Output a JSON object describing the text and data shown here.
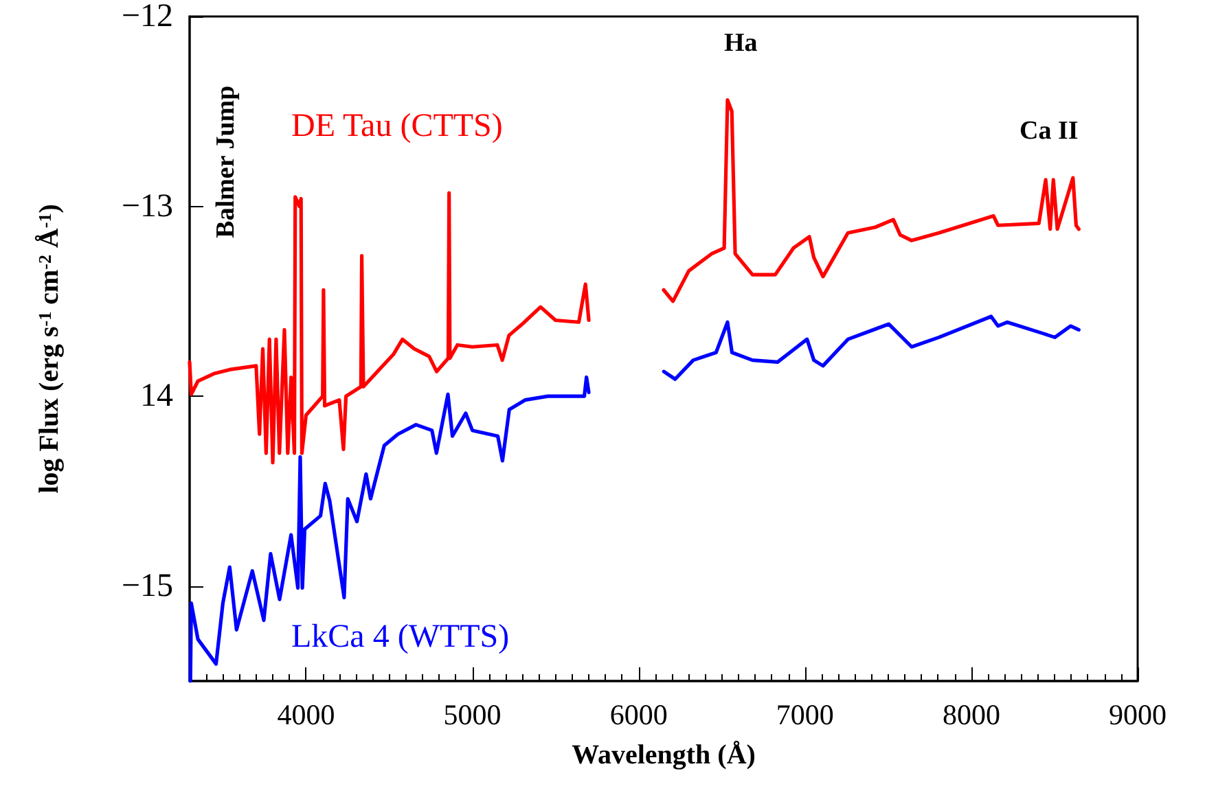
{
  "chart_data": {
    "type": "line",
    "xlabel": "Wavelength (Å)",
    "ylabel": "log Flux (erg s$^{-1}$ cm$^{-2}$ Å$^{-1}$)",
    "xlim": [
      3300,
      9000
    ],
    "xticks": [
      4000,
      5000,
      6000,
      7000,
      8000,
      9000
    ],
    "ylim": [
      -15.5,
      -12
    ],
    "yticks": [
      -12,
      -13,
      {
        "value": -14,
        "label": "14"
      },
      -15
    ],
    "grid": false,
    "legend": false,
    "marker": "none",
    "line_style": "solid",
    "annotations": [
      "Balmer Jump",
      "Ha",
      "Ca II"
    ],
    "series": [
      {
        "name": "DE Tau (CTTS)",
        "color": "#ff0000",
        "x": [
          3300,
          3310,
          3350,
          3450,
          3540,
          3700,
          3720,
          3740,
          3760,
          3780,
          3800,
          3820,
          3840,
          3870,
          3890,
          3910,
          3930,
          3935,
          3960,
          3970,
          3975,
          4000,
          4050,
          4100,
          4105,
          4112,
          4200,
          4225,
          4240,
          4330,
          4335,
          4345,
          4450,
          4525,
          4580,
          4650,
          4740,
          4785,
          4855,
          4860,
          4865,
          4910,
          5000,
          5150,
          5180,
          5220,
          5300,
          5410,
          5500,
          5640,
          5680,
          5700,
          5900,
          6150,
          6206,
          6301,
          6438,
          6514,
          6534,
          6560,
          6580,
          6684,
          6821,
          6930,
          7026,
          7053,
          7108,
          7258,
          7422,
          7531,
          7572,
          7641,
          7805,
          8133,
          8160,
          8406,
          8447,
          8474,
          8493,
          8517,
          8611,
          8630,
          8646
        ],
        "values": [
          -13.82,
          -13.99,
          -13.92,
          -13.88,
          -13.86,
          -13.84,
          -14.2,
          -13.75,
          -14.3,
          -13.7,
          -14.35,
          -13.7,
          -14.3,
          -13.65,
          -14.3,
          -13.9,
          -14.3,
          -12.95,
          -13.0,
          -12.96,
          -14.3,
          -14.1,
          -14.05,
          -14.0,
          -13.44,
          -14.05,
          -14.02,
          -14.28,
          -14.0,
          -13.95,
          -13.26,
          -13.95,
          -13.85,
          -13.78,
          -13.7,
          -13.75,
          -13.79,
          -13.87,
          -13.8,
          -12.93,
          -13.8,
          -13.73,
          -13.74,
          -13.73,
          -13.81,
          -13.68,
          -13.62,
          -13.53,
          -13.6,
          -13.61,
          -13.41,
          -13.6,
          null,
          -13.44,
          -13.5,
          -13.34,
          -13.25,
          -13.22,
          -12.44,
          -12.5,
          -13.25,
          -13.36,
          -13.36,
          -13.22,
          -13.16,
          -13.27,
          -13.37,
          -13.14,
          -13.11,
          -13.07,
          -13.15,
          -13.18,
          -13.14,
          -13.05,
          -13.1,
          -13.09,
          -12.86,
          -13.12,
          -12.86,
          -13.12,
          -12.85,
          -13.1,
          -13.12
        ]
      },
      {
        "name": "LkCa 4 (WTTS)",
        "color": "#0000ff",
        "x": [
          3305,
          3310,
          3350,
          3459,
          3500,
          3541,
          3582,
          3677,
          3746,
          3787,
          3841,
          3910,
          3951,
          3965,
          3978,
          3992,
          4087,
          4115,
          4142,
          4229,
          4251,
          4306,
          4361,
          4388,
          4470,
          4552,
          4661,
          4757,
          4784,
          4853,
          4880,
          4960,
          5000,
          5153,
          5181,
          5222,
          5317,
          5454,
          5673,
          5686,
          5700,
          5900,
          6151,
          6219,
          6328,
          6465,
          6534,
          6561,
          6684,
          6835,
          7012,
          7053,
          7108,
          7258,
          7504,
          7641,
          7805,
          8119,
          8160,
          8215,
          8433,
          8502,
          8597,
          8646
        ],
        "values": [
          -15.5,
          -15.09,
          -15.28,
          -15.41,
          -15.09,
          -14.9,
          -15.23,
          -14.92,
          -15.18,
          -14.83,
          -15.07,
          -14.73,
          -15.01,
          -14.32,
          -15.01,
          -14.7,
          -14.63,
          -14.46,
          -14.55,
          -15.06,
          -14.54,
          -14.66,
          -14.41,
          -14.54,
          -14.26,
          -14.2,
          -14.15,
          -14.18,
          -14.3,
          -13.99,
          -14.21,
          -14.09,
          -14.18,
          -14.21,
          -14.34,
          -14.07,
          -14.02,
          -14.0,
          -14.0,
          -13.9,
          -13.98,
          null,
          -13.87,
          -13.91,
          -13.81,
          -13.77,
          -13.61,
          -13.77,
          -13.81,
          -13.82,
          -13.7,
          -13.81,
          -13.84,
          -13.7,
          -13.62,
          -13.74,
          -13.69,
          -13.58,
          -13.63,
          -13.61,
          -13.67,
          -13.69,
          -13.63,
          -13.65
        ]
      }
    ]
  }
}
